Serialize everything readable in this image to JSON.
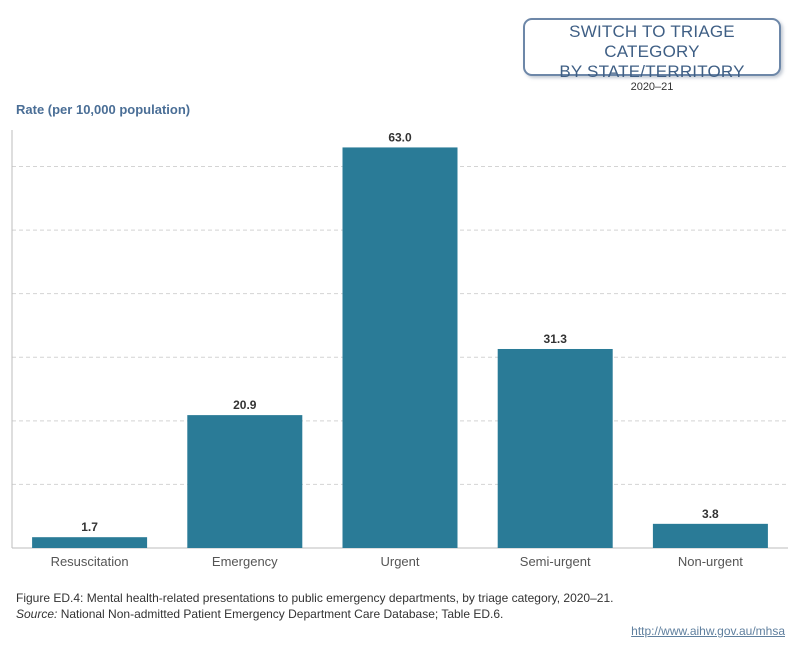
{
  "switch_button": {
    "line1": "SWITCH TO TRIAGE CATEGORY",
    "line2": "BY STATE/TERRITORY",
    "year": "2020–21"
  },
  "caption": {
    "figure": "Figure ED.4: Mental health-related presentations to public emergency departments, by triage category, 2020–21.",
    "source_label": "Source:",
    "source_text": " National Non-admitted Patient Emergency Department Care Database; Table ED.6."
  },
  "url": "http://www.aihw.gov.au/mhsa",
  "colors": {
    "bar": "#2a7b97",
    "grid": "#d4d4d4",
    "axis": "#bdbdbd",
    "label": "#555555"
  },
  "chart_data": {
    "type": "bar",
    "title": "",
    "xlabel": "",
    "ylabel": "Rate (per 10,000 population)",
    "categories": [
      "Resuscitation",
      "Emergency",
      "Urgent",
      "Semi-urgent",
      "Non-urgent"
    ],
    "values": [
      1.7,
      20.9,
      63.0,
      31.3,
      3.8
    ],
    "data_labels": [
      "1.7",
      "20.9",
      "63.0",
      "31.3",
      "3.8"
    ],
    "ylim": [
      0,
      67
    ],
    "grid": true
  }
}
